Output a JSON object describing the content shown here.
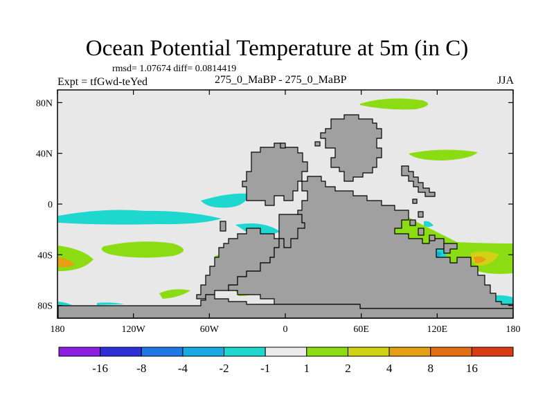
{
  "title": "Ocean Potential Temperature at 5m (in C)",
  "stats": "rmsd= 1.07674 diff= 0.0814419",
  "expt": "Expt = tfGwd-teYed",
  "comparison": "275_0_MaBP - 275_0_MaBP",
  "season": "JJA",
  "y_axis": {
    "ticks": [
      {
        "value": 80,
        "label": "80N"
      },
      {
        "value": 40,
        "label": "40N"
      },
      {
        "value": 0,
        "label": "0"
      },
      {
        "value": -40,
        "label": "40S"
      },
      {
        "value": -80,
        "label": "80S"
      }
    ],
    "range": [
      -90,
      90
    ]
  },
  "x_axis": {
    "ticks": [
      {
        "value": -180,
        "label": "180"
      },
      {
        "value": -120,
        "label": "120W"
      },
      {
        "value": -60,
        "label": "60W"
      },
      {
        "value": 0,
        "label": "0"
      },
      {
        "value": 60,
        "label": "60E"
      },
      {
        "value": 120,
        "label": "120E"
      },
      {
        "value": 180,
        "label": "180"
      }
    ],
    "range": [
      -180,
      180
    ]
  },
  "colorbar": {
    "labels": [
      "-16",
      "-8",
      "-4",
      "-2",
      "-1",
      "1",
      "2",
      "4",
      "8",
      "16"
    ],
    "colors": [
      "#8c1fe0",
      "#3030d8",
      "#1e78e8",
      "#18aae0",
      "#1ed8d0",
      "#ececec",
      "#8cdc14",
      "#d2d214",
      "#e6a014",
      "#e46e14",
      "#d83c10"
    ]
  },
  "map_colors": {
    "land": "#a0a0a0",
    "neutral": "#e8e8e8",
    "cool_light": "#1ed8d0",
    "cool_mid": "#18aae0",
    "warm_1_2": "#8cdc14",
    "warm_2_4": "#d2d214",
    "warm_4_8": "#e6a014"
  }
}
